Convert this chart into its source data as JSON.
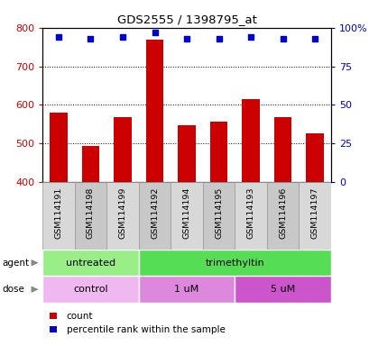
{
  "title": "GDS2555 / 1398795_at",
  "samples": [
    "GSM114191",
    "GSM114198",
    "GSM114199",
    "GSM114192",
    "GSM114194",
    "GSM114195",
    "GSM114193",
    "GSM114196",
    "GSM114197"
  ],
  "counts": [
    580,
    493,
    568,
    768,
    546,
    557,
    614,
    568,
    527
  ],
  "percentiles": [
    94,
    93,
    94,
    97,
    93,
    93,
    94,
    93,
    93
  ],
  "ymin": 400,
  "ymax": 800,
  "yticks": [
    400,
    500,
    600,
    700,
    800
  ],
  "right_yticks": [
    0,
    25,
    50,
    75,
    100
  ],
  "right_ytick_labels": [
    "0",
    "25",
    "50",
    "75",
    "100%"
  ],
  "bar_color": "#cc0000",
  "scatter_color": "#0000cc",
  "bar_bottom": 400,
  "agent_groups": [
    {
      "label": "untreated",
      "start": 0,
      "end": 3,
      "color": "#99ee88"
    },
    {
      "label": "trimethyltin",
      "start": 3,
      "end": 9,
      "color": "#55dd55"
    }
  ],
  "dose_groups": [
    {
      "label": "control",
      "start": 0,
      "end": 3,
      "color": "#f0b8f0"
    },
    {
      "label": "1 uM",
      "start": 3,
      "end": 6,
      "color": "#dd88dd"
    },
    {
      "label": "5 uM",
      "start": 6,
      "end": 9,
      "color": "#cc55cc"
    }
  ],
  "legend_count_color": "#cc0000",
  "legend_pct_color": "#0000cc",
  "bar_width": 0.55,
  "col_bg_color": "#d3d3d3",
  "col_border_color": "#aaaaaa"
}
